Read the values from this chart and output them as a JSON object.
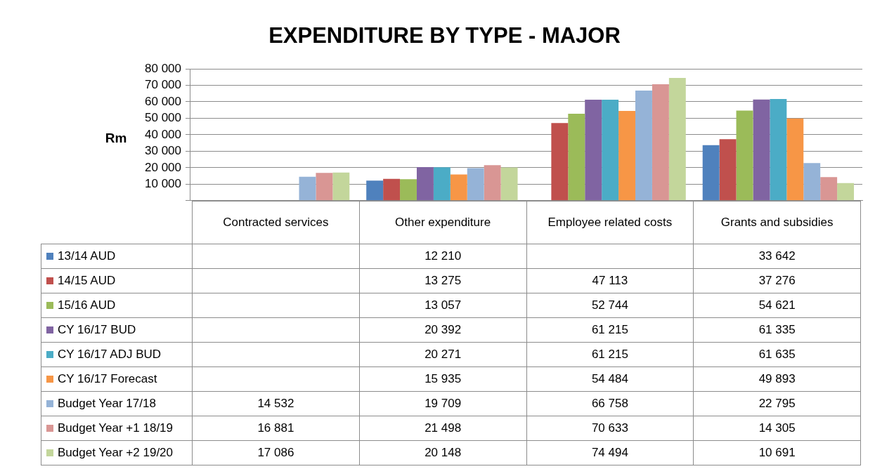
{
  "chart_data": {
    "type": "bar",
    "title": "EXPENDITURE BY TYPE - MAJOR",
    "ylabel": "Rm",
    "categories": [
      "Contracted services",
      "Other expenditure",
      "Employee related costs",
      "Grants and subsidies"
    ],
    "series": [
      {
        "name": "13/14 AUD",
        "color": "#4f81bd",
        "values": [
          null,
          12210,
          null,
          33642
        ]
      },
      {
        "name": "14/15 AUD",
        "color": "#c0504d",
        "values": [
          null,
          13275,
          47113,
          37276
        ]
      },
      {
        "name": "15/16 AUD",
        "color": "#9bbb59",
        "values": [
          null,
          13057,
          52744,
          54621
        ]
      },
      {
        "name": "CY 16/17 BUD",
        "color": "#8064a2",
        "values": [
          null,
          20392,
          61215,
          61335
        ]
      },
      {
        "name": "CY 16/17 ADJ BUD",
        "color": "#4bacc6",
        "values": [
          null,
          20271,
          61215,
          61635
        ]
      },
      {
        "name": "CY 16/17 Forecast",
        "color": "#f79646",
        "values": [
          null,
          15935,
          54484,
          49893
        ]
      },
      {
        "name": "Budget Year 17/18",
        "color": "#95b3d7",
        "values": [
          14532,
          19709,
          66758,
          22795
        ]
      },
      {
        "name": "Budget Year +1 18/19",
        "color": "#d99694",
        "values": [
          16881,
          21498,
          70633,
          14305
        ]
      },
      {
        "name": "Budget Year +2 19/20",
        "color": "#c3d69b",
        "values": [
          17086,
          20148,
          74494,
          10691
        ]
      }
    ],
    "ylim": [
      0,
      80000
    ],
    "yticks": [
      {
        "value": 0,
        "label": null
      },
      {
        "value": 10000,
        "label": "10 000"
      },
      {
        "value": 20000,
        "label": "20 000"
      },
      {
        "value": 30000,
        "label": "30 000"
      },
      {
        "value": 40000,
        "label": "40 000"
      },
      {
        "value": 50000,
        "label": "50 000"
      },
      {
        "value": 60000,
        "label": "60 000"
      },
      {
        "value": 70000,
        "label": "70 000"
      },
      {
        "value": 80000,
        "label": "80 000"
      }
    ],
    "grid": "y",
    "legend": "left",
    "data_labels": true
  }
}
